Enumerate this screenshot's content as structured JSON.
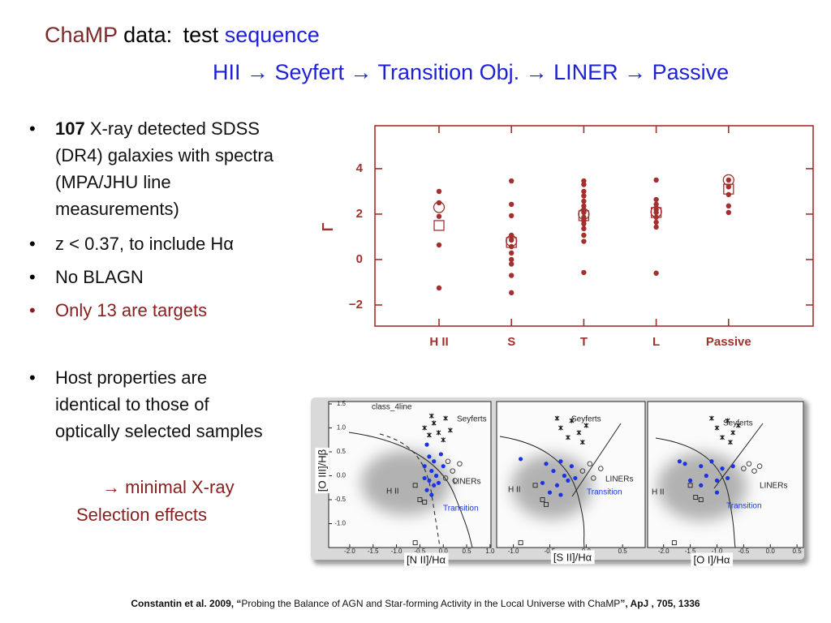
{
  "header": {
    "title_a": "ChaMP",
    "title_b": "data:",
    "title_c": "test",
    "title_d": "sequence",
    "subtitle": "HII → Seyfert → Transition Obj. → LINER → Passive"
  },
  "bullets": {
    "b1_bold": "107",
    "b1_text": " X-ray detected SDSS (DR4) galaxies with spectra (MPA/JHU line measurements)",
    "b2": "z < 0.37, to include Hα",
    "b3": "No BLAGN",
    "b4": "Only 13 are targets",
    "b5": "Host properties are identical to those of optically selected samples",
    "note_1": "→ minimal X-ray",
    "note_2": "Selection effects"
  },
  "citation": {
    "bold_a": "Constantin et al. 2009, “",
    "text": "Probing the Balance of AGN and Star-forming Activity in the Local Universe with ChaMP",
    "bold_b": "”, ApJ , 705, 1336"
  },
  "chart_data": [
    {
      "type": "strip",
      "ylabel": "Γ",
      "categories": [
        "H II",
        "S",
        "T",
        "L",
        "Passive"
      ],
      "ylim": [
        -2.93,
        5.89
      ],
      "yticks": [
        {
          "value": -2,
          "label": "−2"
        },
        0,
        2,
        4
      ],
      "color": "#a3302e",
      "series": [
        {
          "marker": "dot",
          "values": [
            [
              3.0,
              2.5,
              1.9,
              0.64,
              -1.25
            ],
            [
              3.46,
              2.43,
              1.93,
              1.07,
              0.86,
              0.57,
              0.29,
              0,
              -0.2,
              -0.7,
              -1.46
            ],
            [
              3.46,
              3.3,
              3.0,
              2.8,
              2.57,
              2.36,
              2.2,
              2.07,
              1.86,
              1.7,
              1.57,
              1.36,
              1.07,
              0.8,
              -0.57
            ],
            [
              3.5,
              2.64,
              2.43,
              2.2,
              2.07,
              1.86,
              1.64,
              1.43,
              -0.6
            ],
            [
              3.5,
              3.2,
              2.86,
              2.36,
              2.07
            ]
          ]
        },
        {
          "marker": "circle",
          "values": [
            2.3,
            0.82,
            2.0,
            2.1,
            3.5
          ]
        },
        {
          "marker": "square",
          "values": [
            1.5,
            0.75,
            1.93,
            2.07,
            3.1
          ]
        }
      ]
    },
    {
      "type": "scatter",
      "xlabel": "[N II]/Hα",
      "ylabel": "[O III]/Hβ",
      "annotations": [
        "class_4line",
        "Seyferts",
        "LINERs",
        "H II",
        "Transition"
      ],
      "xlim": [
        -2.45,
        1.02
      ],
      "ylim": [
        -1.5,
        1.55
      ],
      "xticks": [
        {
          "value": -2,
          "label": "-2.0"
        },
        {
          "value": -1.5,
          "label": "-1.5"
        },
        {
          "value": -1,
          "label": "-1.0"
        },
        {
          "value": -0.5,
          "label": "-0.5"
        },
        {
          "value": 0,
          "label": "0.0"
        },
        0.5,
        {
          "value": 1,
          "label": "1.0"
        }
      ],
      "yticks": [
        {
          "value": -1,
          "label": "-1.0"
        },
        {
          "value": -0.5,
          "label": "-0.5"
        },
        {
          "value": 0,
          "label": "0.0"
        },
        0.5,
        {
          "value": 1,
          "label": "1.0"
        },
        1.5
      ],
      "series": [
        {
          "marker": "dot",
          "color": "#1a35e0",
          "x": [
            -0.35,
            -0.3,
            -0.2,
            -0.4,
            -0.25,
            -0.15,
            -0.3,
            -0.2,
            -0.35,
            -0.1,
            -0.25,
            -0.4,
            0.0,
            -0.05
          ],
          "y": [
            0.65,
            0.4,
            0.3,
            0.2,
            0.1,
            0.0,
            -0.1,
            -0.2,
            -0.3,
            -0.15,
            -0.4,
            -0.05,
            0.2,
            0.45
          ]
        },
        {
          "marker": "cross",
          "color": "#111111",
          "x": [
            -0.4,
            -0.2,
            -0.1,
            0.05,
            -0.3,
            0.15,
            0.0,
            -0.25
          ],
          "y": [
            1.0,
            1.1,
            0.9,
            1.2,
            0.85,
            0.95,
            0.75,
            1.25
          ]
        },
        {
          "marker": "ring",
          "color": "#333333",
          "x": [
            0.1,
            0.2,
            0.35,
            0.05,
            0.25
          ],
          "y": [
            0.3,
            0.1,
            0.25,
            -0.05,
            -0.1
          ]
        },
        {
          "marker": "square",
          "color": "#222222",
          "x": [
            -0.6,
            -0.5,
            -0.4,
            -0.6
          ],
          "y": [
            -0.2,
            -0.5,
            -0.55,
            -1.4
          ]
        }
      ]
    },
    {
      "type": "scatter",
      "xlabel": "[S II]/Hα",
      "annotations": [
        "Seyferts",
        "LINERs",
        "H II",
        "Transition"
      ],
      "xlim": [
        -1.23,
        0.81
      ],
      "ylim": [
        -1.5,
        1.55
      ],
      "xticks": [
        {
          "value": -1,
          "label": "-1.0"
        },
        {
          "value": -0.5,
          "label": "-0.5"
        },
        {
          "value": 0,
          "label": "0.0"
        },
        0.5
      ],
      "series": [
        {
          "marker": "dot",
          "color": "#1a35e0",
          "x": [
            -0.55,
            -0.45,
            -0.35,
            -0.3,
            -0.4,
            -0.25,
            -0.2,
            -0.5,
            -0.15,
            -0.35,
            -0.9,
            -0.6
          ],
          "y": [
            0.25,
            0.1,
            0.3,
            0.0,
            -0.2,
            -0.1,
            0.2,
            -0.35,
            -0.05,
            -0.4,
            0.35,
            -0.15
          ]
        },
        {
          "marker": "cross",
          "color": "#111111",
          "x": [
            -0.35,
            -0.2,
            -0.1,
            -0.25,
            0.0,
            -0.4,
            -0.05
          ],
          "y": [
            1.0,
            1.15,
            0.9,
            0.8,
            1.05,
            1.2,
            0.7
          ]
        },
        {
          "marker": "ring",
          "color": "#333333",
          "x": [
            -0.05,
            0.05,
            0.1,
            0.2
          ],
          "y": [
            0.1,
            0.25,
            -0.05,
            0.15
          ]
        },
        {
          "marker": "square",
          "color": "#222222",
          "x": [
            -0.7,
            -0.6,
            -0.55,
            -0.9
          ],
          "y": [
            -0.2,
            -0.5,
            -0.6,
            -1.4
          ]
        }
      ]
    },
    {
      "type": "scatter",
      "xlabel": "[O I]/Hα",
      "annotations": [
        "Seyferts",
        "LINERs",
        "H II",
        "Transition"
      ],
      "xlim": [
        -2.3,
        0.62
      ],
      "ylim": [
        -1.5,
        1.55
      ],
      "xticks": [
        {
          "value": -2,
          "label": "-2.0"
        },
        {
          "value": -1.5,
          "label": "-1.5"
        },
        {
          "value": -1,
          "label": "-1.0"
        },
        {
          "value": -0.5,
          "label": "-0.5"
        },
        {
          "value": 0,
          "label": "0.0"
        },
        0.5
      ],
      "series": [
        {
          "marker": "dot",
          "color": "#1a35e0",
          "x": [
            -1.6,
            -1.3,
            -1.2,
            -1.1,
            -1.0,
            -0.9,
            -1.3,
            -0.8,
            -1.0,
            -0.7,
            -1.5,
            -1.7
          ],
          "y": [
            0.25,
            0.2,
            0.0,
            0.3,
            -0.1,
            0.15,
            -0.2,
            -0.05,
            -0.35,
            0.2,
            -0.1,
            0.3
          ]
        },
        {
          "marker": "cross",
          "color": "#111111",
          "x": [
            -1.0,
            -0.8,
            -0.7,
            -0.9,
            -0.6,
            -1.1,
            -0.75
          ],
          "y": [
            1.0,
            1.15,
            0.9,
            0.8,
            1.05,
            1.2,
            0.7
          ]
        },
        {
          "marker": "ring",
          "color": "#333333",
          "x": [
            -0.5,
            -0.4,
            -0.3,
            -0.2
          ],
          "y": [
            0.15,
            0.25,
            0.1,
            0.2
          ]
        },
        {
          "marker": "square",
          "color": "#222222",
          "x": [
            -1.5,
            -1.4,
            -1.3,
            -1.8
          ],
          "y": [
            -0.2,
            -0.45,
            -0.5,
            -1.4
          ]
        }
      ]
    }
  ]
}
